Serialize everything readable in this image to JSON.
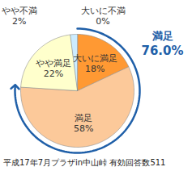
{
  "chart_data": {
    "type": "pie",
    "categories": [
      "大いに満足",
      "満足",
      "やや満足",
      "やや不満",
      "大いに不満"
    ],
    "values": [
      18,
      58,
      22,
      2,
      0
    ],
    "value_labels": [
      "18%",
      "58%",
      "22%",
      "2%",
      "0%"
    ],
    "colors": [
      "#ff9933",
      "#fcc99a",
      "#ffffcc",
      "#ccecff",
      "#99ccff"
    ],
    "data_labels": true,
    "annotations": [
      {
        "text": "満足",
        "value": 76.0,
        "label": "76.0%"
      }
    ],
    "caption": "平成17年7月プラザin中山峠 有効回答数511"
  }
}
